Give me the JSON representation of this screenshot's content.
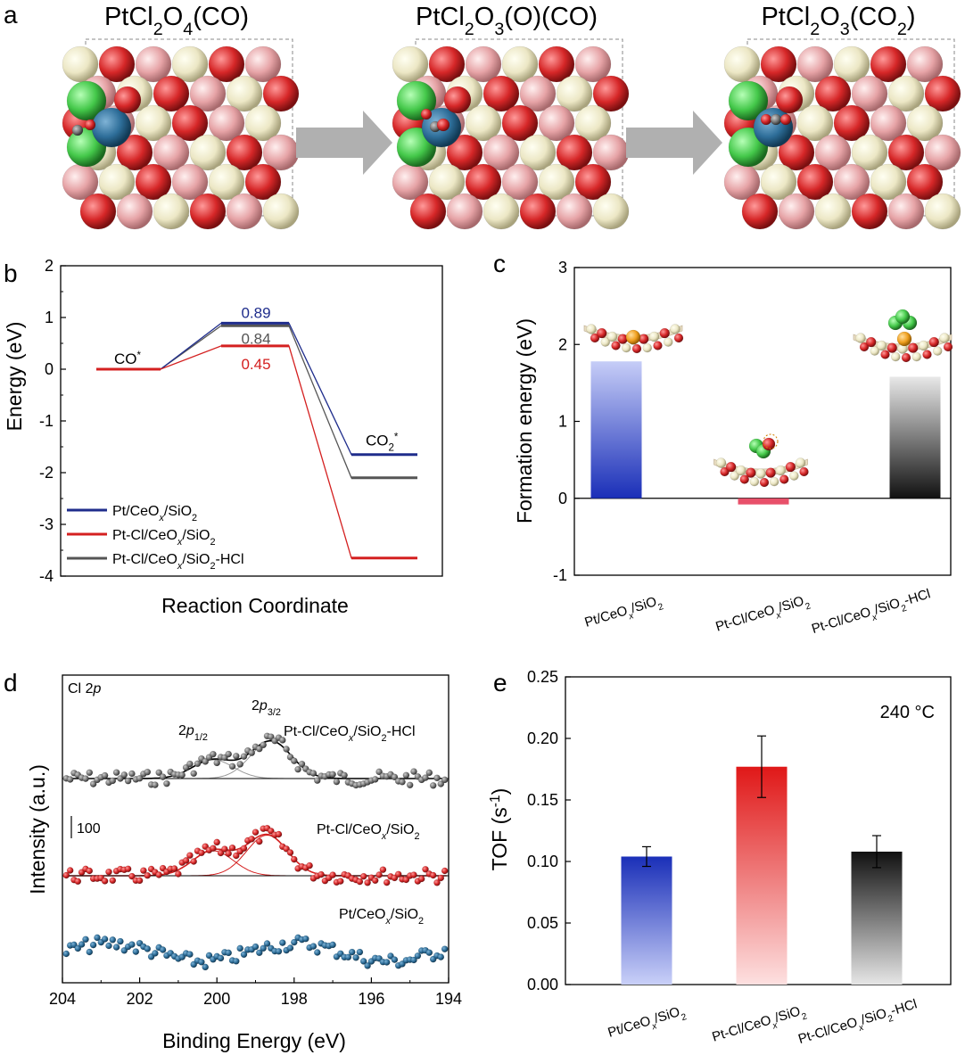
{
  "panel_letters": {
    "a": "a",
    "b": "b",
    "c": "c",
    "d": "d",
    "e": "e"
  },
  "colors": {
    "blue": "#1f2d8c",
    "red": "#d42020",
    "gray": "#555555",
    "o_red": "#d62728",
    "o_pink": "#e6a3a6",
    "ce_cream": "#ece7c5",
    "cl_green": "#44c84a",
    "pt_blue": "#2e6e99",
    "fe_orange": "#f0a020"
  },
  "structures": [
    {
      "title_parts": [
        "PtCl",
        "2",
        "O",
        "4",
        "(CO)"
      ],
      "stage": "co"
    },
    {
      "title_parts": [
        "PtCl",
        "2",
        "O",
        "3",
        "(O)(CO)"
      ],
      "stage": "oco"
    },
    {
      "title_parts": [
        "PtCl",
        "2",
        "O",
        "3",
        "(CO",
        "2",
        ")"
      ],
      "stage": "co2"
    }
  ],
  "chart_data": [
    {
      "panel": "b",
      "type": "line",
      "ylabel": "Energy (eV)",
      "xlabel": "Reaction Coordinate",
      "ylim": [
        -4,
        2
      ],
      "yticks": [
        -4,
        -3,
        -2,
        -1,
        0,
        1,
        2
      ],
      "state_labels": {
        "initial": "CO",
        "initial_sup": "*",
        "final": "CO",
        "final_sub": "2",
        "final_sup": "*"
      },
      "series": [
        {
          "name": "Pt/CeOₓ/SiO₂",
          "color": "#1f2d8c",
          "values": [
            0,
            0.89,
            -1.65
          ],
          "ts_label": "0.89"
        },
        {
          "name": "Pt-Cl/CeOₓ/SiO₂",
          "color": "#d42020",
          "values": [
            0,
            0.45,
            -3.65
          ],
          "ts_label": "0.45"
        },
        {
          "name": "Pt-Cl/CeOₓ/SiO₂-HCl",
          "color": "#555555",
          "values": [
            0,
            0.84,
            -2.1
          ],
          "ts_label": "0.84"
        }
      ]
    },
    {
      "panel": "c",
      "type": "bar",
      "ylabel": "Formation energy (eV)",
      "ylim": [
        -1,
        3
      ],
      "yticks": [
        -1,
        0,
        1,
        2,
        3
      ],
      "categories": [
        "Pt/CeOₓ/SiO₂",
        "Pt-Cl/CeOₓ/SiO₂",
        "Pt-Cl/CeOₓ/SiO₂-HCl"
      ],
      "values": [
        1.78,
        -0.08,
        1.58
      ],
      "colors": [
        "#1a2fb8",
        "#e04050",
        "#111111"
      ]
    },
    {
      "panel": "d",
      "type": "scatter",
      "title": "Cl 2p",
      "xlabel": "Binding Energy (eV)",
      "ylabel": "Intensity (a.u.)",
      "xlim": [
        204,
        194
      ],
      "xticks": [
        204,
        202,
        200,
        198,
        196,
        194
      ],
      "scale_bar": "100",
      "peak_labels": [
        "2p1/2",
        "2p3/2"
      ],
      "series": [
        {
          "name": "Pt-Cl/CeOₓ/SiO₂-HCl",
          "color": "#666666",
          "peaks_eV": [
            200.1,
            198.6
          ],
          "heights": [
            0.3,
            0.6
          ]
        },
        {
          "name": "Pt-Cl/CeOₓ/SiO₂",
          "color": "#d42020",
          "peaks_eV": [
            200.1,
            198.7
          ],
          "heights": [
            0.4,
            0.65
          ]
        },
        {
          "name": "Pt/CeOₓ/SiO₂",
          "color": "#1f2d8c",
          "peaks_eV": [],
          "heights": []
        }
      ]
    },
    {
      "panel": "e",
      "type": "bar",
      "ylabel": "TOF (s⁻¹)",
      "annotation": "240 °C",
      "ylim": [
        0,
        0.25
      ],
      "yticks": [
        "0.00",
        "0.05",
        "0.10",
        "0.15",
        "0.20",
        "0.25"
      ],
      "categories": [
        "Pt/CeOₓ/SiO₂",
        "Pt-Cl/CeOₓ/SiO₂",
        "Pt-Cl/CeOₓ/SiO₂-HCl"
      ],
      "values": [
        0.104,
        0.177,
        0.108
      ],
      "errors": [
        0.008,
        0.025,
        0.013
      ],
      "colors": [
        "#1a2fb8",
        "#e01818",
        "#111111"
      ]
    }
  ]
}
